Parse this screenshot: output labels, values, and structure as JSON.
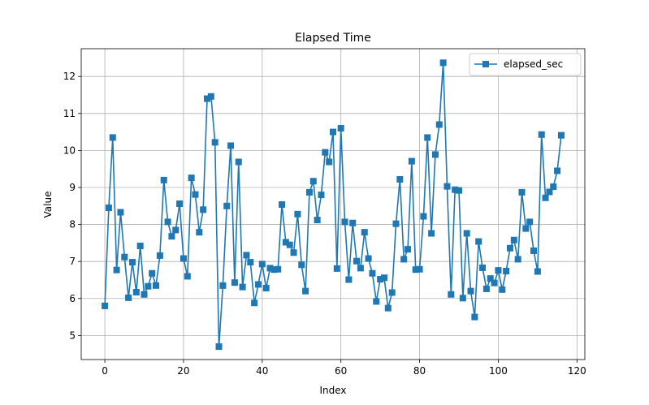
{
  "chart_data": {
    "type": "line",
    "title": "Elapsed Time",
    "xlabel": "Index",
    "ylabel": "Value",
    "xlim": [
      -6,
      122
    ],
    "ylim": [
      4.35,
      12.75
    ],
    "xticks": [
      0,
      20,
      40,
      60,
      80,
      100,
      120
    ],
    "yticks": [
      5,
      6,
      7,
      8,
      9,
      10,
      11,
      12
    ],
    "grid": true,
    "legend_position": "top-right",
    "marker": "square",
    "colors": {
      "series": "#1f77b4",
      "grid": "#b0b0b0",
      "axes": "#000000"
    },
    "series": [
      {
        "name": "elapsed_sec",
        "x": [
          0,
          1,
          2,
          3,
          4,
          5,
          6,
          7,
          8,
          9,
          10,
          11,
          12,
          13,
          14,
          15,
          16,
          17,
          18,
          19,
          20,
          21,
          22,
          23,
          24,
          25,
          26,
          27,
          28,
          29,
          30,
          31,
          32,
          33,
          34,
          35,
          36,
          37,
          38,
          39,
          40,
          41,
          42,
          43,
          44,
          45,
          46,
          47,
          48,
          49,
          50,
          51,
          52,
          53,
          54,
          55,
          56,
          57,
          58,
          59,
          60,
          61,
          62,
          63,
          64,
          65,
          66,
          67,
          68,
          69,
          70,
          71,
          72,
          73,
          74,
          75,
          76,
          77,
          78,
          79,
          80,
          81,
          82,
          83,
          84,
          85,
          86,
          87,
          88,
          89,
          90,
          91,
          92,
          93,
          94,
          95,
          96,
          97,
          98,
          99,
          100,
          101,
          102,
          103,
          104,
          105,
          106,
          107,
          108,
          109,
          110,
          111,
          112,
          113,
          114,
          115,
          116
        ],
        "values": [
          5.8,
          8.45,
          10.35,
          6.77,
          8.33,
          7.12,
          6.02,
          6.98,
          6.17,
          7.42,
          6.11,
          6.33,
          6.68,
          6.35,
          7.16,
          9.2,
          8.07,
          7.68,
          7.85,
          8.56,
          7.08,
          6.6,
          9.26,
          8.81,
          7.79,
          8.4,
          11.4,
          11.46,
          10.22,
          4.7,
          6.35,
          8.5,
          10.13,
          6.43,
          9.69,
          6.31,
          7.17,
          6.98,
          5.88,
          6.38,
          6.93,
          6.28,
          6.82,
          6.78,
          6.79,
          8.54,
          7.52,
          7.45,
          7.24,
          8.28,
          6.91,
          6.2,
          8.87,
          9.17,
          8.12,
          8.8,
          9.95,
          9.69,
          10.5,
          6.81,
          10.6,
          8.07,
          6.51,
          8.04,
          7.01,
          6.82,
          7.79,
          7.08,
          6.68,
          5.92,
          6.52,
          6.56,
          5.74,
          6.16,
          8.02,
          9.22,
          7.06,
          7.33,
          9.71,
          6.78,
          6.79,
          8.22,
          10.35,
          7.76,
          9.89,
          10.7,
          12.37,
          9.03,
          6.11,
          8.94,
          8.92,
          6.01,
          7.76,
          6.2,
          5.5,
          7.54,
          6.83,
          6.26,
          6.54,
          6.42,
          6.76,
          6.24,
          6.74,
          7.36,
          7.58,
          7.06,
          8.87,
          7.89,
          8.07,
          7.29,
          6.73,
          10.43,
          8.72,
          8.88,
          9.02,
          9.45,
          10.41
        ]
      }
    ]
  }
}
